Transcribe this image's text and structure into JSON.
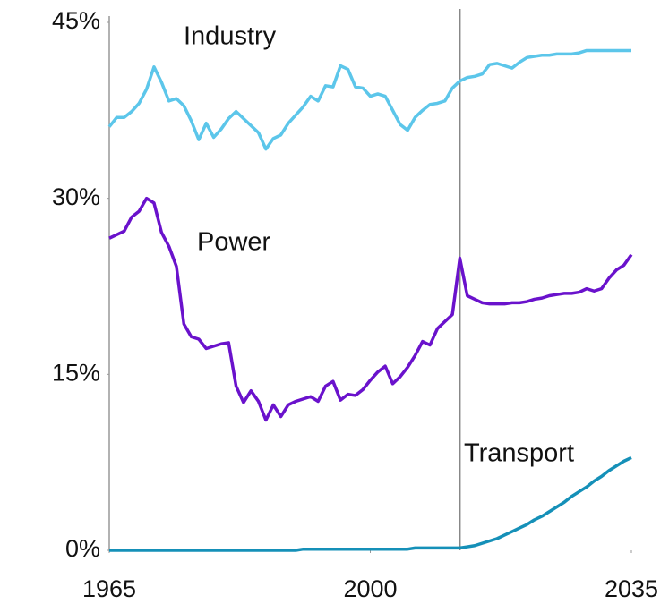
{
  "chart_data": {
    "type": "line",
    "x": [
      1965,
      1966,
      1967,
      1968,
      1969,
      1970,
      1971,
      1972,
      1973,
      1974,
      1975,
      1976,
      1977,
      1978,
      1979,
      1980,
      1981,
      1982,
      1983,
      1984,
      1985,
      1986,
      1987,
      1988,
      1989,
      1990,
      1991,
      1992,
      1993,
      1994,
      1995,
      1996,
      1997,
      1998,
      1999,
      2000,
      2001,
      2002,
      2003,
      2004,
      2005,
      2006,
      2007,
      2008,
      2009,
      2010,
      2011,
      2012,
      2013,
      2014,
      2015,
      2016,
      2017,
      2018,
      2019,
      2020,
      2021,
      2022,
      2023,
      2024,
      2025,
      2026,
      2027,
      2028,
      2029,
      2030,
      2031,
      2032,
      2033,
      2034,
      2035
    ],
    "series": [
      {
        "name": "Industry",
        "color": "#5cc6ea",
        "values": [
          36.1,
          36.9,
          36.9,
          37.4,
          38.1,
          39.3,
          41.2,
          39.9,
          38.3,
          38.5,
          37.9,
          36.6,
          35.0,
          36.4,
          35.2,
          35.9,
          36.8,
          37.4,
          36.8,
          36.2,
          35.6,
          34.2,
          35.1,
          35.4,
          36.4,
          37.1,
          37.8,
          38.7,
          38.3,
          39.6,
          39.5,
          41.3,
          41.0,
          39.5,
          39.4,
          38.7,
          38.9,
          38.7,
          37.5,
          36.3,
          35.8,
          36.9,
          37.5,
          38.0,
          38.1,
          38.3,
          39.4,
          40.0,
          40.3,
          40.4,
          40.6,
          41.4,
          41.5,
          41.3,
          41.1,
          41.6,
          42.0,
          42.1,
          42.2,
          42.2,
          42.3,
          42.3,
          42.3,
          42.4,
          42.6,
          42.6,
          42.6,
          42.6,
          42.6,
          42.6,
          42.6
        ]
      },
      {
        "name": "Power",
        "color": "#6a12cc",
        "values": [
          26.6,
          26.9,
          27.2,
          28.4,
          28.9,
          30.0,
          29.6,
          27.1,
          25.9,
          24.2,
          19.3,
          18.2,
          18.0,
          17.2,
          17.4,
          17.6,
          17.7,
          14.0,
          12.6,
          13.6,
          12.7,
          11.1,
          12.4,
          11.4,
          12.4,
          12.7,
          12.9,
          13.1,
          12.7,
          14.0,
          14.4,
          12.8,
          13.3,
          13.2,
          13.7,
          14.5,
          15.2,
          15.7,
          14.2,
          14.8,
          15.6,
          16.6,
          17.8,
          17.5,
          18.9,
          19.5,
          20.1,
          24.9,
          21.7,
          21.4,
          21.1,
          21.0,
          21.0,
          21.0,
          21.1,
          21.1,
          21.2,
          21.4,
          21.5,
          21.7,
          21.8,
          21.9,
          21.9,
          22.0,
          22.3,
          22.1,
          22.3,
          23.2,
          23.9,
          24.3,
          25.2
        ]
      },
      {
        "name": "Transport",
        "color": "#1590b8",
        "values": [
          0,
          0,
          0,
          0,
          0,
          0,
          0,
          0,
          0,
          0,
          0,
          0,
          0,
          0,
          0,
          0,
          0,
          0,
          0,
          0,
          0,
          0,
          0,
          0,
          0,
          0,
          0.1,
          0.1,
          0.1,
          0.1,
          0.1,
          0.1,
          0.1,
          0.1,
          0.1,
          0.1,
          0.1,
          0.1,
          0.1,
          0.1,
          0.1,
          0.2,
          0.2,
          0.2,
          0.2,
          0.2,
          0.2,
          0.2,
          0.3,
          0.4,
          0.6,
          0.8,
          1.0,
          1.3,
          1.6,
          1.9,
          2.2,
          2.6,
          2.9,
          3.3,
          3.7,
          4.1,
          4.6,
          5.0,
          5.4,
          5.9,
          6.3,
          6.8,
          7.2,
          7.6,
          7.9
        ]
      }
    ],
    "xlim": [
      1965,
      2035
    ],
    "xticks": [
      1965,
      2000,
      2035
    ],
    "ylim": [
      0,
      45
    ],
    "yticks": [
      {
        "value": 0,
        "label": "0%"
      },
      {
        "value": 15,
        "label": "15%"
      },
      {
        "value": 30,
        "label": "30%"
      },
      {
        "value": 45,
        "label": "45%"
      }
    ],
    "vline_x": 2012,
    "grid": false
  }
}
